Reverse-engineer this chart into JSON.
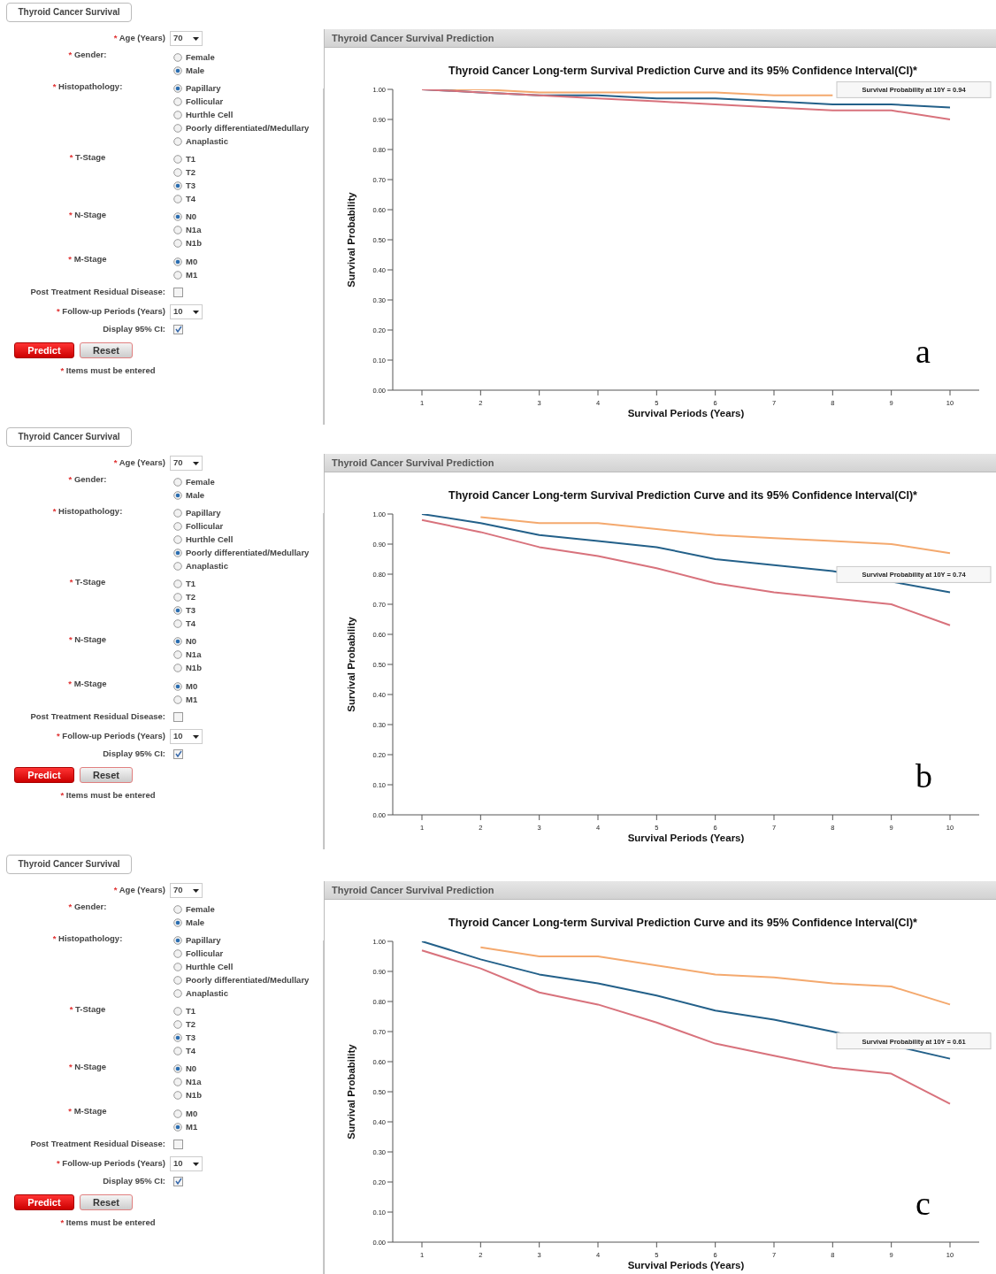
{
  "chart_data": [
    {
      "type": "other",
      "title": "Thyroid Cancer Survival",
      "annotations": [
        "* Age (Years)",
        "70",
        "* Gender:",
        "Female",
        "Male",
        "* Histopathology:",
        "Papillary",
        "Follicular",
        "Hurthle Cell",
        "Poorly differentiated/Medullary",
        "Anaplastic",
        "* T-Stage",
        "T1",
        "T2",
        "T3",
        "T4",
        "* N-Stage",
        "N0",
        "N1a",
        "N1b",
        "* M-Stage",
        "M0",
        "M1",
        "Post Treatment Residual Disease:",
        "* Follow-up Periods (Years)",
        "10",
        "Display 95% CI:",
        "Predict",
        "Reset",
        "* Items must be entered"
      ]
    },
    {
      "type": "line",
      "title": "Thyroid Cancer Long-term Survival Prediction Curve and its 95% Confidence Interval(CI)*",
      "xlabel": "Survival Periods (Years)",
      "ylabel": "Survival Probability",
      "categories": [
        "1",
        "2",
        "3",
        "4",
        "5",
        "6",
        "7",
        "8",
        "9",
        "10"
      ],
      "series": [
        {
          "color": "#f4a96e",
          "values": [
            1.0,
            1.0,
            0.99,
            0.99,
            0.99,
            0.99,
            0.98,
            0.98,
            null,
            null
          ]
        },
        {
          "color": "#236089",
          "values": [
            1.0,
            0.99,
            0.98,
            0.98,
            0.97,
            0.97,
            0.96,
            0.95,
            0.95,
            0.94
          ]
        },
        {
          "color": "#d8727c",
          "values": [
            1.0,
            0.99,
            0.98,
            0.97,
            0.96,
            0.95,
            0.94,
            0.93,
            0.93,
            0.9
          ]
        }
      ],
      "ylim": [
        0,
        1
      ],
      "yticks": [
        {
          "value": 0,
          "label": "0.00"
        },
        {
          "value": 0.1,
          "label": "0.10"
        },
        {
          "value": 0.2,
          "label": "0.20"
        },
        {
          "value": 0.3,
          "label": "0.30"
        },
        {
          "value": 0.4,
          "label": "0.40"
        },
        {
          "value": 0.5,
          "label": "0.50"
        },
        {
          "value": 0.6,
          "label": "0.60"
        },
        {
          "value": 0.7,
          "label": "0.70"
        },
        {
          "value": 0.8,
          "label": "0.80"
        },
        {
          "value": 0.9,
          "label": "0.90"
        },
        {
          "value": 1,
          "label": "1.00"
        }
      ],
      "grid": false,
      "legend": false,
      "marker": "none",
      "line_style": "solid",
      "annotations": [
        "Thyroid Cancer Survival Prediction",
        "a",
        {
          "text": "Survival Probability at 10Y = 0.94",
          "x": "10",
          "y": 0.94
        }
      ]
    },
    {
      "type": "other",
      "title": "Thyroid Cancer Survival",
      "annotations": [
        "* Age (Years)",
        "70",
        "* Gender:",
        "Female",
        "Male",
        "* Histopathology:",
        "Papillary",
        "Follicular",
        "Hurthle Cell",
        "Poorly differentiated/Medullary",
        "Anaplastic",
        "* T-Stage",
        "T1",
        "T2",
        "T3",
        "T4",
        "* N-Stage",
        "N0",
        "N1a",
        "N1b",
        "* M-Stage",
        "M0",
        "M1",
        "Post Treatment Residual Disease:",
        "* Follow-up Periods (Years)",
        "10",
        "Display 95% CI:",
        "Predict",
        "Reset",
        "* Items must be entered"
      ]
    },
    {
      "type": "line",
      "title": "Thyroid Cancer Long-term Survival Prediction Curve and its 95% Confidence Interval(CI)*",
      "xlabel": "Survival Periods (Years)",
      "ylabel": "Survival Probability",
      "categories": [
        "1",
        "2",
        "3",
        "4",
        "5",
        "6",
        "7",
        "8",
        "9",
        "10"
      ],
      "series": [
        {
          "color": "#f4a96e",
          "values": [
            null,
            0.99,
            0.97,
            0.97,
            0.95,
            0.93,
            0.92,
            0.91,
            0.9,
            0.87
          ]
        },
        {
          "color": "#236089",
          "values": [
            1.0,
            0.97,
            0.93,
            0.91,
            0.89,
            0.85,
            0.83,
            0.81,
            null,
            0.74
          ]
        },
        {
          "color": "#d8727c",
          "values": [
            0.98,
            0.94,
            0.89,
            0.86,
            0.82,
            0.77,
            0.74,
            0.72,
            0.7,
            0.63
          ]
        }
      ],
      "ylim": [
        0,
        1
      ],
      "yticks": [
        {
          "value": 0,
          "label": "0.00"
        },
        {
          "value": 0.1,
          "label": "0.10"
        },
        {
          "value": 0.2,
          "label": "0.20"
        },
        {
          "value": 0.3,
          "label": "0.30"
        },
        {
          "value": 0.4,
          "label": "0.40"
        },
        {
          "value": 0.5,
          "label": "0.50"
        },
        {
          "value": 0.6,
          "label": "0.60"
        },
        {
          "value": 0.7,
          "label": "0.70"
        },
        {
          "value": 0.8,
          "label": "0.80"
        },
        {
          "value": 0.9,
          "label": "0.90"
        },
        {
          "value": 1,
          "label": "1.00"
        }
      ],
      "grid": false,
      "legend": false,
      "marker": "none",
      "line_style": "solid",
      "annotations": [
        "Thyroid Cancer Survival Prediction",
        "b",
        {
          "text": "Survival Probability at 10Y = 0.74",
          "x": "10",
          "y": 0.74
        }
      ]
    },
    {
      "type": "other",
      "title": "Thyroid Cancer Survival",
      "annotations": [
        "* Age (Years)",
        "70",
        "* Gender:",
        "Female",
        "Male",
        "* Histopathology:",
        "Papillary",
        "Follicular",
        "Hurthle Cell",
        "Poorly differentiated/Medullary",
        "Anaplastic",
        "* T-Stage",
        "T1",
        "T2",
        "T3",
        "T4",
        "* N-Stage",
        "N0",
        "N1a",
        "N1b",
        "* M-Stage",
        "M0",
        "M1",
        "Post Treatment Residual Disease:",
        "* Follow-up Periods (Years)",
        "10",
        "Display 95% CI:",
        "Predict",
        "Reset",
        "* Items must be entered"
      ]
    },
    {
      "type": "line",
      "title": "Thyroid Cancer Long-term Survival Prediction Curve and its 95% Confidence Interval(CI)*",
      "xlabel": "Survival Periods (Years)",
      "ylabel": "Survival Probability",
      "categories": [
        "1",
        "2",
        "3",
        "4",
        "5",
        "6",
        "7",
        "8",
        "9",
        "10"
      ],
      "series": [
        {
          "color": "#f4a96e",
          "values": [
            null,
            0.98,
            0.95,
            0.95,
            0.92,
            0.89,
            0.88,
            0.86,
            0.85,
            0.79
          ]
        },
        {
          "color": "#236089",
          "values": [
            1.0,
            0.94,
            0.89,
            0.86,
            0.82,
            0.77,
            0.74,
            0.7,
            null,
            0.61
          ]
        },
        {
          "color": "#d8727c",
          "values": [
            0.97,
            0.91,
            0.83,
            0.79,
            0.73,
            0.66,
            0.62,
            0.58,
            0.56,
            0.46
          ]
        }
      ],
      "ylim": [
        0,
        1
      ],
      "yticks": [
        {
          "value": 0,
          "label": "0.00"
        },
        {
          "value": 0.1,
          "label": "0.10"
        },
        {
          "value": 0.2,
          "label": "0.20"
        },
        {
          "value": 0.3,
          "label": "0.30"
        },
        {
          "value": 0.4,
          "label": "0.40"
        },
        {
          "value": 0.5,
          "label": "0.50"
        },
        {
          "value": 0.6,
          "label": "0.60"
        },
        {
          "value": 0.7,
          "label": "0.70"
        },
        {
          "value": 0.8,
          "label": "0.80"
        },
        {
          "value": 0.9,
          "label": "0.90"
        },
        {
          "value": 1,
          "label": "1.00"
        }
      ],
      "grid": false,
      "legend": false,
      "marker": "none",
      "line_style": "solid",
      "annotations": [
        "Thyroid Cancer Survival Prediction",
        "c",
        {
          "text": "Survival Probability at 10Y = 0.61",
          "x": "10",
          "y": 0.61
        }
      ]
    }
  ]
}
